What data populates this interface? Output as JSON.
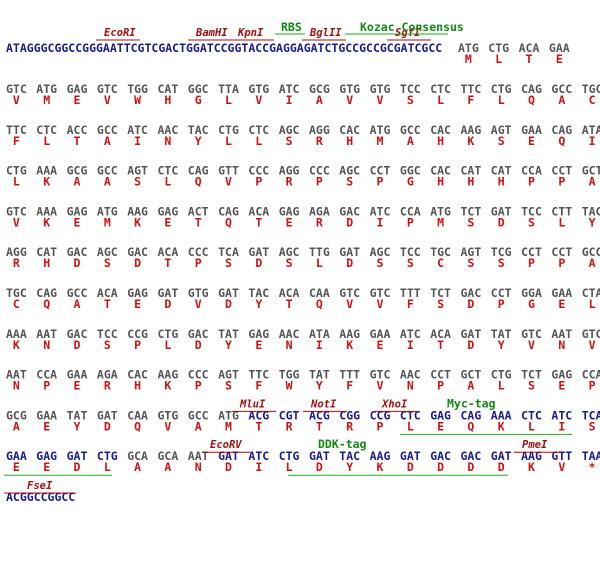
{
  "leader": {
    "sequence": "ATAGGGCGGCCGGGAATTCGTCGACTGGATCCGGTACCGAGGAGATCTGCCGCCGCGATCGCC",
    "codons": [
      "ATG",
      "CTG",
      "ACA",
      "GAA"
    ],
    "aa": [
      "M",
      "L",
      "T",
      "E"
    ],
    "sites": [
      "EcoRI",
      "BamHI",
      "KpnI",
      "BglII",
      "SgfI"
    ],
    "tags": [
      "RBS",
      "Kozac Consensus"
    ]
  },
  "rows": [
    {
      "codons": [
        "GTC",
        "ATG",
        "GAG",
        "GTC",
        "TGG",
        "CAT",
        "GGC",
        "TTA",
        "GTG",
        "ATC",
        "GCG",
        "GTG",
        "GTG",
        "TCC",
        "CTC",
        "TTC",
        "CTG",
        "CAG",
        "GCC",
        "TGC"
      ],
      "aa": [
        "V",
        "M",
        "E",
        "V",
        "W",
        "H",
        "G",
        "L",
        "V",
        "I",
        "A",
        "V",
        "V",
        "S",
        "L",
        "F",
        "L",
        "Q",
        "A",
        "C"
      ]
    },
    {
      "codons": [
        "TTC",
        "CTC",
        "ACC",
        "GCC",
        "ATC",
        "AAC",
        "TAC",
        "CTG",
        "CTC",
        "AGC",
        "AGG",
        "CAC",
        "ATG",
        "GCC",
        "CAC",
        "AAG",
        "AGT",
        "GAA",
        "CAG",
        "ATA"
      ],
      "aa": [
        "F",
        "L",
        "T",
        "A",
        "I",
        "N",
        "Y",
        "L",
        "L",
        "S",
        "R",
        "H",
        "M",
        "A",
        "H",
        "K",
        "S",
        "E",
        "Q",
        "I"
      ]
    },
    {
      "codons": [
        "CTG",
        "AAA",
        "GCG",
        "GCC",
        "AGT",
        "CTC",
        "CAG",
        "GTT",
        "CCC",
        "AGG",
        "CCC",
        "AGC",
        "CCT",
        "GGC",
        "CAC",
        "CAT",
        "CAT",
        "CCA",
        "CCT",
        "GCT"
      ],
      "aa": [
        "L",
        "K",
        "A",
        "A",
        "S",
        "L",
        "Q",
        "V",
        "P",
        "R",
        "P",
        "S",
        "P",
        "G",
        "H",
        "H",
        "H",
        "P",
        "P",
        "A"
      ]
    },
    {
      "codons": [
        "GTC",
        "AAA",
        "GAG",
        "ATG",
        "AAG",
        "GAG",
        "ACT",
        "CAG",
        "ACA",
        "GAG",
        "AGA",
        "GAC",
        "ATC",
        "CCA",
        "ATG",
        "TCT",
        "GAT",
        "TCC",
        "CTT",
        "TAC"
      ],
      "aa": [
        "V",
        "K",
        "E",
        "M",
        "K",
        "E",
        "T",
        "Q",
        "T",
        "E",
        "R",
        "D",
        "I",
        "P",
        "M",
        "S",
        "D",
        "S",
        "L",
        "Y"
      ]
    },
    {
      "codons": [
        "AGG",
        "CAT",
        "GAC",
        "AGC",
        "GAC",
        "ACA",
        "CCC",
        "TCA",
        "GAT",
        "AGC",
        "TTG",
        "GAT",
        "AGC",
        "TCC",
        "TGC",
        "AGT",
        "TCG",
        "CCT",
        "CCT",
        "GCC"
      ],
      "aa": [
        "R",
        "H",
        "D",
        "S",
        "D",
        "T",
        "P",
        "S",
        "D",
        "S",
        "L",
        "D",
        "S",
        "S",
        "C",
        "S",
        "S",
        "P",
        "P",
        "A"
      ]
    },
    {
      "codons": [
        "TGC",
        "CAG",
        "GCC",
        "ACA",
        "GAG",
        "GAT",
        "GTG",
        "GAT",
        "TAC",
        "ACA",
        "CAA",
        "GTC",
        "GTC",
        "TTT",
        "TCT",
        "GAC",
        "CCT",
        "GGA",
        "GAA",
        "CTA"
      ],
      "aa": [
        "C",
        "Q",
        "A",
        "T",
        "E",
        "D",
        "V",
        "D",
        "Y",
        "T",
        "Q",
        "V",
        "V",
        "F",
        "S",
        "D",
        "P",
        "G",
        "E",
        "L"
      ]
    },
    {
      "codons": [
        "AAA",
        "AAT",
        "GAC",
        "TCC",
        "CCG",
        "CTG",
        "GAC",
        "TAT",
        "GAG",
        "AAC",
        "ATA",
        "AAG",
        "GAA",
        "ATC",
        "ACA",
        "GAT",
        "TAT",
        "GTC",
        "AAT",
        "GTC"
      ],
      "aa": [
        "K",
        "N",
        "D",
        "S",
        "P",
        "L",
        "D",
        "Y",
        "E",
        "N",
        "I",
        "K",
        "E",
        "I",
        "T",
        "D",
        "Y",
        "V",
        "N",
        "V"
      ]
    },
    {
      "codons": [
        "AAT",
        "CCA",
        "GAA",
        "AGA",
        "CAC",
        "AAG",
        "CCC",
        "AGT",
        "TTC",
        "TGG",
        "TAT",
        "TTT",
        "GTC",
        "AAC",
        "CCT",
        "GCT",
        "CTG",
        "TCT",
        "GAG",
        "CCA"
      ],
      "aa": [
        "N",
        "P",
        "E",
        "R",
        "H",
        "K",
        "P",
        "S",
        "F",
        "W",
        "Y",
        "F",
        "V",
        "N",
        "P",
        "A",
        "L",
        "S",
        "E",
        "P"
      ]
    },
    {
      "codons": [
        "GCG",
        "GAA",
        "TAT",
        "GAT",
        "CAA",
        "GTG",
        "GCC",
        "ATG",
        "ACG",
        "CGT",
        "ACG",
        "CGG",
        "CCG",
        "CTC",
        "GAG",
        "CAG",
        "AAA",
        "CTC",
        "ATC",
        "TCA"
      ],
      "aa": [
        "A",
        "E",
        "Y",
        "D",
        "Q",
        "V",
        "A",
        "M",
        "T",
        "R",
        "T",
        "R",
        "P",
        "L",
        "E",
        "Q",
        "K",
        "L",
        "I",
        "S"
      ],
      "vector_codons": [
        8,
        9,
        10,
        11,
        12,
        13,
        14,
        15,
        16,
        17,
        18,
        19
      ],
      "sites": [
        "MluI",
        "NotI",
        "XhoI"
      ],
      "tags": [
        "Myc-tag"
      ]
    },
    {
      "codons": [
        "GAA",
        "GAG",
        "GAT",
        "CTG",
        "GCA",
        "GCA",
        "AAT",
        "GAT",
        "ATC",
        "CTG",
        "GAT",
        "TAC",
        "AAG",
        "GAT",
        "GAC",
        "GAC",
        "GAT",
        "AAG",
        "GTT",
        "TAA"
      ],
      "aa": [
        "E",
        "E",
        "D",
        "L",
        "A",
        "A",
        "N",
        "D",
        "I",
        "L",
        "D",
        "Y",
        "K",
        "D",
        "D",
        "D",
        "D",
        "K",
        "V",
        "*"
      ],
      "vector_codons": [
        0,
        1,
        2,
        3,
        7,
        8,
        9,
        10,
        11,
        12,
        13,
        14,
        15,
        16,
        17,
        18,
        19
      ],
      "sites": [
        "EcoRV",
        "PmeI"
      ],
      "tags": [
        "DDK-tag"
      ]
    }
  ],
  "trailer": {
    "sequence": "ACGGCCGGCC",
    "sites": [
      "FseI"
    ]
  }
}
